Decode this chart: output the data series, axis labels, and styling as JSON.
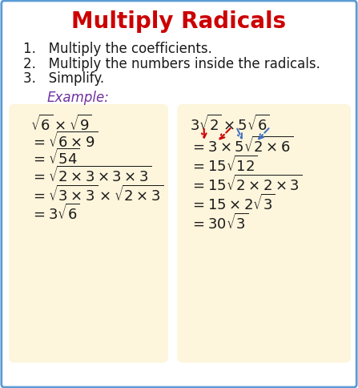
{
  "title": "Multiply Radicals",
  "title_color": "#cc0000",
  "bg_color": "#ffffff",
  "border_color": "#5b9bd5",
  "steps": [
    "1.   Multiply the coefficients.",
    "2.   Multiply the numbers inside the radicals.",
    "3.   Simplify."
  ],
  "example_label": "Example:",
  "example_color": "#7030a0",
  "box_bg": "#fdf5dc",
  "left_lines": [
    "$\\sqrt{6}\\times\\sqrt{9}$",
    "$=\\sqrt{6\\times9}$",
    "$=\\sqrt{54}$",
    "$=\\sqrt{2\\times3\\times3\\times3}$",
    "$=\\sqrt{3\\times3}\\times\\sqrt{2\\times3}$",
    "$=3\\sqrt{6}$"
  ],
  "right_lines": [
    "$3\\sqrt{2}\\times5\\sqrt{6}$",
    "$=3\\times5\\sqrt{2\\times6}$",
    "$=15\\sqrt{12}$",
    "$=15\\sqrt{2\\times2\\times3}$",
    "$=15\\times2\\sqrt{3}$",
    "$=30\\sqrt{3}$"
  ],
  "title_fontsize": 20,
  "step_fontsize": 12,
  "example_fontsize": 12,
  "math_fontsize": 13,
  "arrow_red": "#cc0000",
  "arrow_blue": "#4472c4"
}
